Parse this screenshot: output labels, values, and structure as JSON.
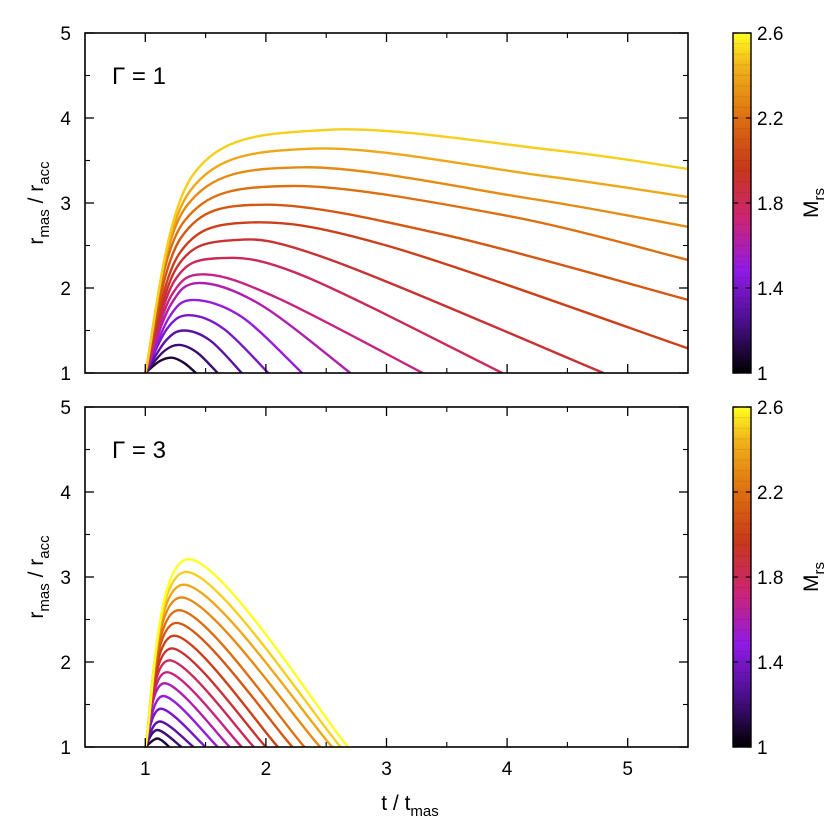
{
  "figure": {
    "x_axis_label": "t / t",
    "x_axis_label_sub": "mas"
  },
  "chart_data": [
    {
      "type": "line",
      "panel_label": "Γ = 1",
      "xlabel": "",
      "ylabel": "r_mas / r_acc",
      "ylabel_parts": {
        "r1": "r",
        "sub1": "mas",
        "sep": " / ",
        "r2": "r",
        "sub2": "acc"
      },
      "xlim": [
        0.5,
        5.5
      ],
      "ylim": [
        1,
        5
      ],
      "xticks": [
        1,
        2,
        3,
        4,
        5
      ],
      "yticks": [
        1,
        2,
        3,
        4,
        5
      ],
      "colorbar": {
        "label": "M",
        "label_sub": "rs",
        "range": [
          1,
          2.6
        ],
        "ticks": [
          "1",
          "1.4",
          "1.8",
          "2.2",
          "2.6"
        ]
      },
      "series": [
        {
          "mrs": 1.1,
          "x": [
            1.0,
            1.12,
            1.22,
            1.32,
            1.42
          ],
          "y": [
            1.0,
            1.14,
            1.18,
            1.12,
            1.0
          ]
        },
        {
          "mrs": 1.2,
          "x": [
            1.0,
            1.15,
            1.28,
            1.43,
            1.6
          ],
          "y": [
            1.0,
            1.25,
            1.33,
            1.24,
            1.0
          ]
        },
        {
          "mrs": 1.3,
          "x": [
            1.0,
            1.17,
            1.32,
            1.54,
            1.8
          ],
          "y": [
            1.0,
            1.38,
            1.5,
            1.38,
            1.0
          ]
        },
        {
          "mrs": 1.4,
          "x": [
            1.0,
            1.18,
            1.36,
            1.65,
            2.02
          ],
          "y": [
            1.0,
            1.52,
            1.68,
            1.52,
            1.0
          ]
        },
        {
          "mrs": 1.5,
          "x": [
            1.0,
            1.2,
            1.4,
            1.8,
            2.3
          ],
          "y": [
            1.0,
            1.66,
            1.86,
            1.66,
            1.0
          ]
        },
        {
          "mrs": 1.6,
          "x": [
            1.0,
            1.21,
            1.45,
            1.96,
            2.7
          ],
          "y": [
            1.0,
            1.8,
            2.06,
            1.8,
            1.0
          ]
        },
        {
          "mrs": 1.7,
          "x": [
            1.0,
            1.22,
            1.5,
            2.1,
            3.3
          ],
          "y": [
            1.0,
            1.92,
            2.16,
            1.88,
            1.0
          ]
        },
        {
          "mrs": 1.8,
          "x": [
            1.0,
            1.24,
            1.6,
            2.3,
            3.96
          ],
          "y": [
            1.0,
            2.08,
            2.35,
            2.15,
            1.0
          ]
        },
        {
          "mrs": 1.9,
          "x": [
            1.0,
            1.26,
            1.7,
            2.5,
            4.8
          ],
          "y": [
            1.0,
            2.24,
            2.56,
            2.35,
            1.0
          ]
        },
        {
          "mrs": 2.0,
          "x": [
            1.0,
            1.28,
            1.85,
            3.0,
            5.5
          ],
          "y": [
            1.0,
            2.4,
            2.77,
            2.5,
            1.29
          ]
        },
        {
          "mrs": 2.1,
          "x": [
            1.0,
            1.3,
            2.0,
            3.5,
            5.5
          ],
          "y": [
            1.0,
            2.6,
            2.98,
            2.62,
            1.86
          ]
        },
        {
          "mrs": 2.2,
          "x": [
            1.0,
            1.32,
            2.2,
            4.0,
            5.5
          ],
          "y": [
            1.0,
            2.78,
            3.2,
            2.85,
            2.33
          ]
        },
        {
          "mrs": 2.3,
          "x": [
            1.0,
            1.34,
            2.3,
            4.2,
            5.5
          ],
          "y": [
            1.0,
            2.96,
            3.42,
            3.05,
            2.72
          ]
        },
        {
          "mrs": 2.4,
          "x": [
            1.0,
            1.37,
            2.4,
            4.3,
            5.5
          ],
          "y": [
            1.0,
            3.14,
            3.64,
            3.32,
            3.07
          ]
        },
        {
          "mrs": 2.5,
          "x": [
            1.0,
            1.4,
            2.5,
            4.4,
            5.5
          ],
          "y": [
            1.0,
            3.34,
            3.86,
            3.62,
            3.4
          ]
        }
      ]
    },
    {
      "type": "line",
      "panel_label": "Γ = 3",
      "xlabel": "",
      "ylabel": "r_mas / r_acc",
      "ylabel_parts": {
        "r1": "r",
        "sub1": "mas",
        "sep": " / ",
        "r2": "r",
        "sub2": "acc"
      },
      "xlim": [
        0.5,
        5.5
      ],
      "ylim": [
        1,
        5
      ],
      "xticks": [
        1,
        2,
        3,
        4,
        5
      ],
      "yticks": [
        1,
        2,
        3,
        4,
        5
      ],
      "colorbar": {
        "label": "M",
        "label_sub": "rs",
        "range": [
          1,
          2.6
        ],
        "ticks": [
          "1",
          "1.4",
          "1.8",
          "2.2",
          "2.6"
        ]
      },
      "series": [
        {
          "mrs": 1.1,
          "x": [
            1.0,
            1.1,
            1.2
          ],
          "y": [
            1.0,
            1.1,
            1.0
          ]
        },
        {
          "mrs": 1.2,
          "x": [
            1.0,
            1.1,
            1.3
          ],
          "y": [
            1.0,
            1.2,
            1.0
          ]
        },
        {
          "mrs": 1.3,
          "x": [
            1.0,
            1.12,
            1.4
          ],
          "y": [
            1.0,
            1.3,
            1.0
          ]
        },
        {
          "mrs": 1.4,
          "x": [
            1.0,
            1.13,
            1.5
          ],
          "y": [
            1.0,
            1.45,
            1.0
          ]
        },
        {
          "mrs": 1.5,
          "x": [
            1.0,
            1.15,
            1.6
          ],
          "y": [
            1.0,
            1.6,
            1.0
          ]
        },
        {
          "mrs": 1.6,
          "x": [
            1.0,
            1.16,
            1.7
          ],
          "y": [
            1.0,
            1.75,
            1.0
          ]
        },
        {
          "mrs": 1.7,
          "x": [
            1.0,
            1.18,
            1.8
          ],
          "y": [
            1.0,
            1.88,
            1.0
          ]
        },
        {
          "mrs": 1.8,
          "x": [
            1.0,
            1.2,
            1.9
          ],
          "y": [
            1.0,
            2.02,
            1.0
          ]
        },
        {
          "mrs": 1.9,
          "x": [
            1.0,
            1.22,
            2.0
          ],
          "y": [
            1.0,
            2.16,
            1.0
          ]
        },
        {
          "mrs": 2.0,
          "x": [
            1.0,
            1.24,
            2.1
          ],
          "y": [
            1.0,
            2.31,
            1.0
          ]
        },
        {
          "mrs": 2.1,
          "x": [
            1.0,
            1.26,
            2.22
          ],
          "y": [
            1.0,
            2.46,
            1.0
          ]
        },
        {
          "mrs": 2.2,
          "x": [
            1.0,
            1.28,
            2.32
          ],
          "y": [
            1.0,
            2.61,
            1.0
          ]
        },
        {
          "mrs": 2.3,
          "x": [
            1.0,
            1.3,
            2.45
          ],
          "y": [
            1.0,
            2.76,
            1.0
          ]
        },
        {
          "mrs": 2.4,
          "x": [
            1.0,
            1.32,
            2.55
          ],
          "y": [
            1.0,
            2.91,
            1.0
          ]
        },
        {
          "mrs": 2.5,
          "x": [
            1.0,
            1.34,
            2.62
          ],
          "y": [
            1.0,
            3.06,
            1.0
          ]
        },
        {
          "mrs": 2.6,
          "x": [
            1.0,
            1.36,
            2.68
          ],
          "y": [
            1.0,
            3.21,
            1.0
          ]
        }
      ]
    }
  ]
}
